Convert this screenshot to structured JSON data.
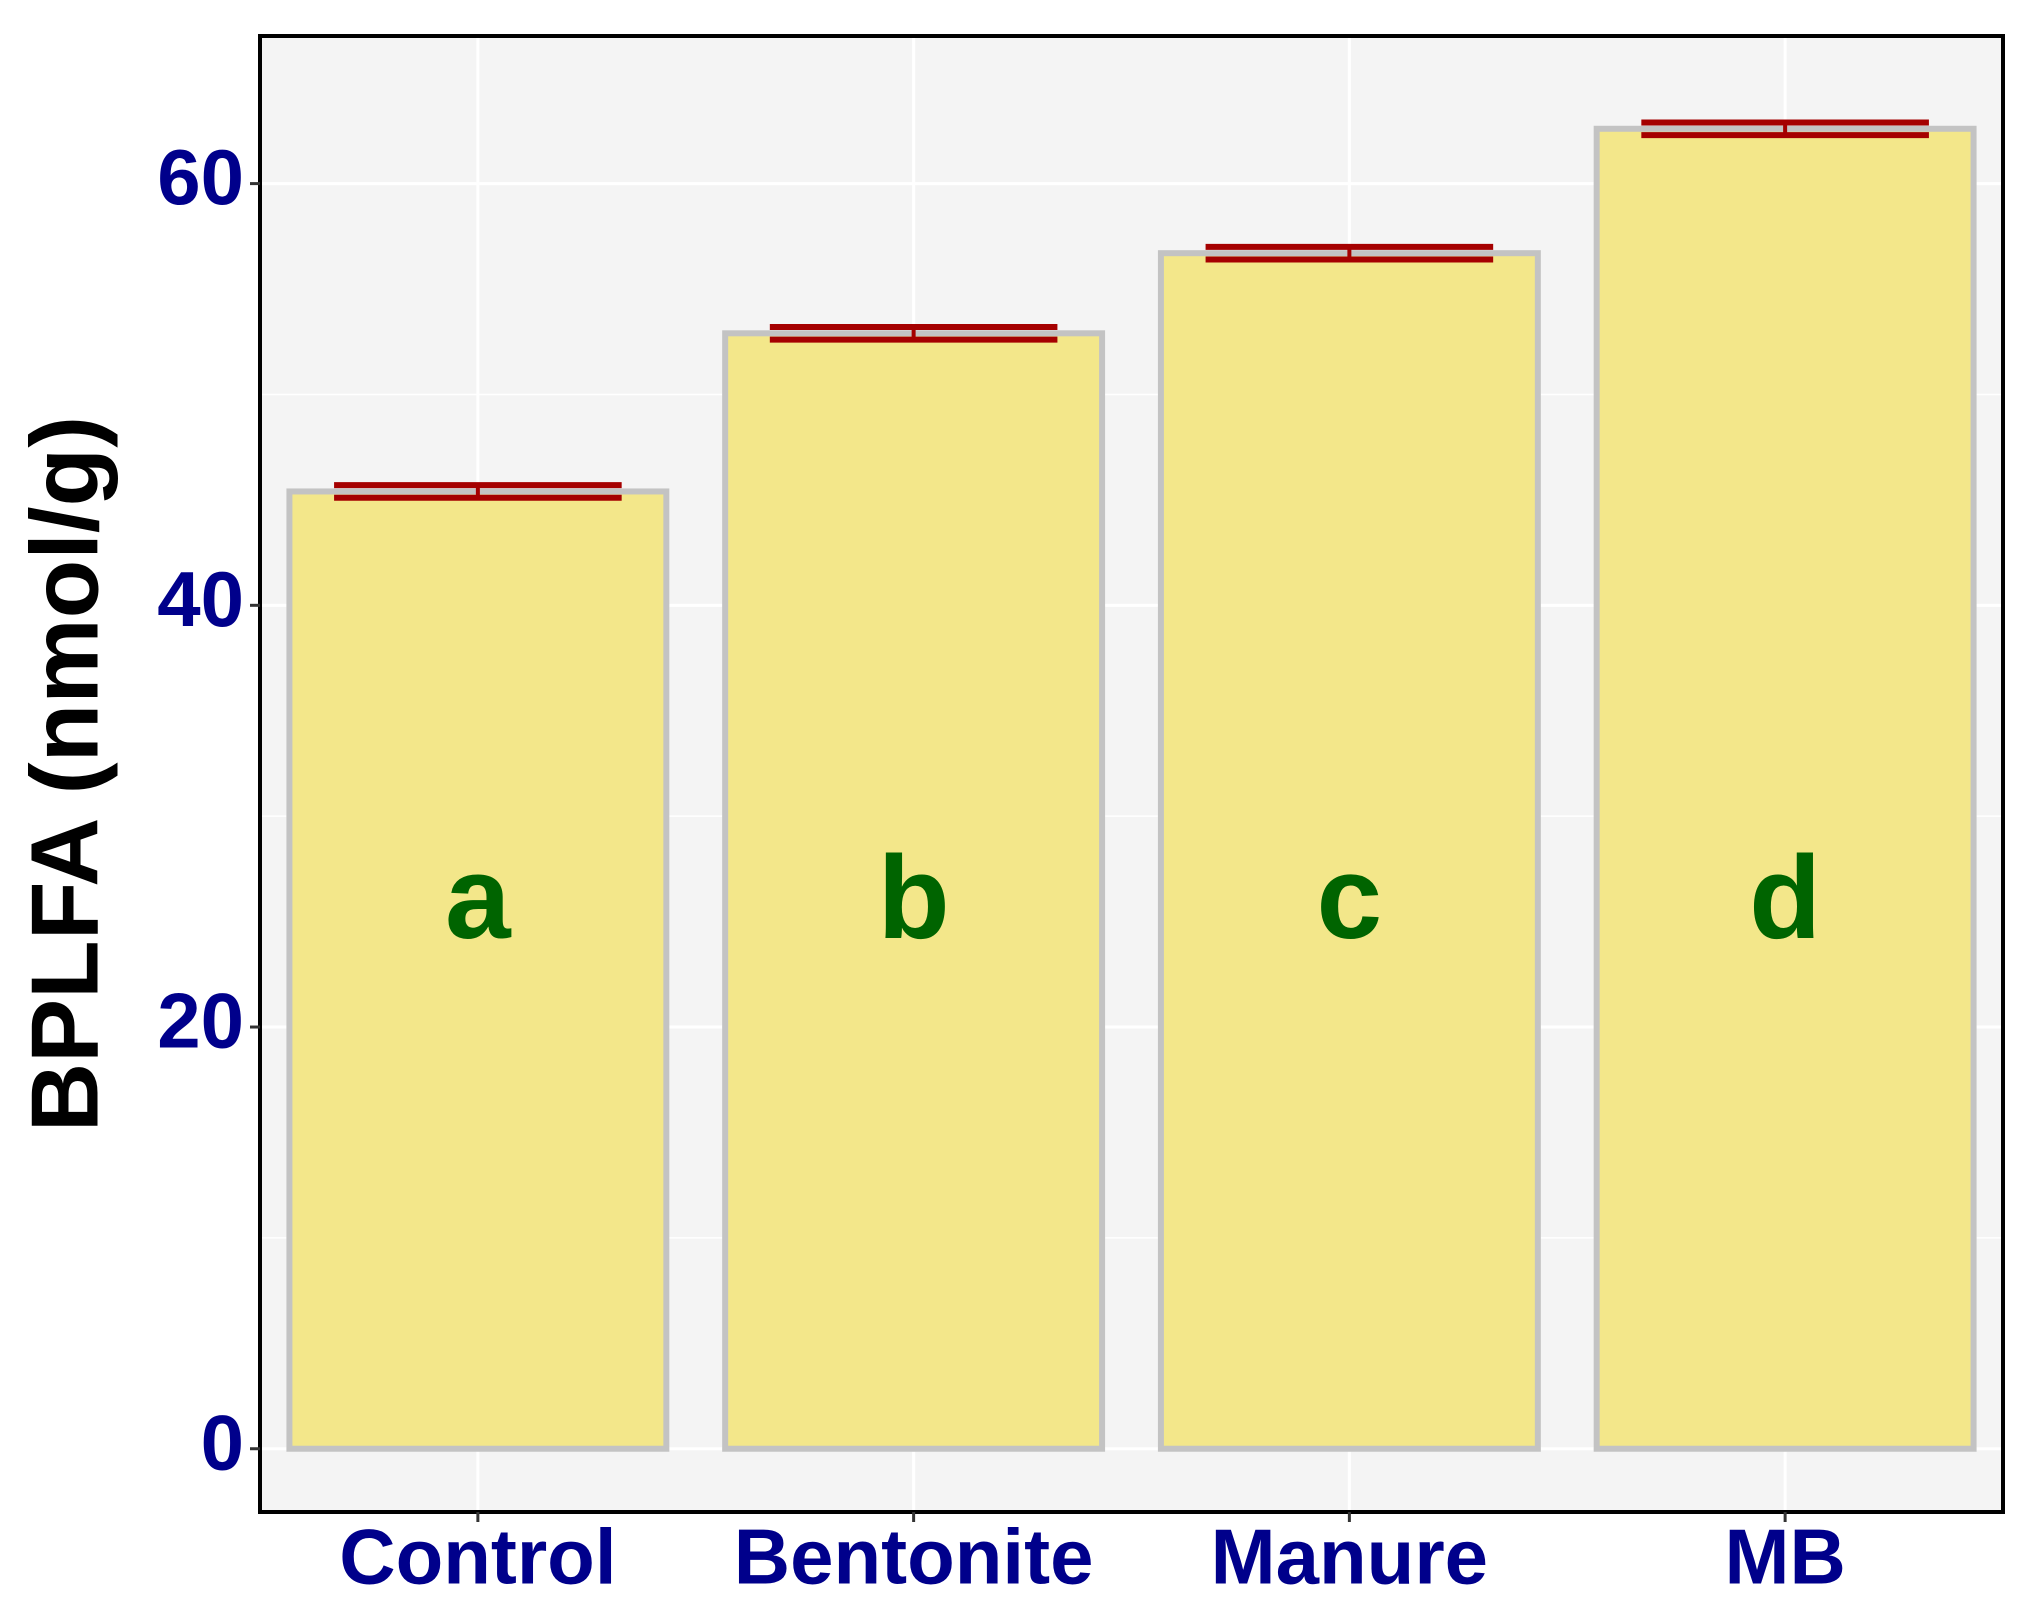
{
  "chart_data": {
    "type": "bar",
    "ylabel": "BPLFA (nmol/g)",
    "categories": [
      "Control",
      "Bentonite",
      "Manure",
      "MB"
    ],
    "values": [
      45.4,
      52.9,
      56.7,
      62.6
    ],
    "errors": [
      0.3,
      0.3,
      0.3,
      0.3
    ],
    "annotations": [
      "a",
      "b",
      "c",
      "d"
    ],
    "color": "#f3e78a",
    "edge_color": "#c3c3c3",
    "error_color": "#a50000",
    "annotation_color": "#006400",
    "tick_color": "#00008b",
    "ylim": [
      -3,
      67
    ],
    "yticks": [
      0,
      20,
      40,
      60
    ],
    "minor_yticks": [
      10,
      30,
      50
    ],
    "grid": true
  }
}
